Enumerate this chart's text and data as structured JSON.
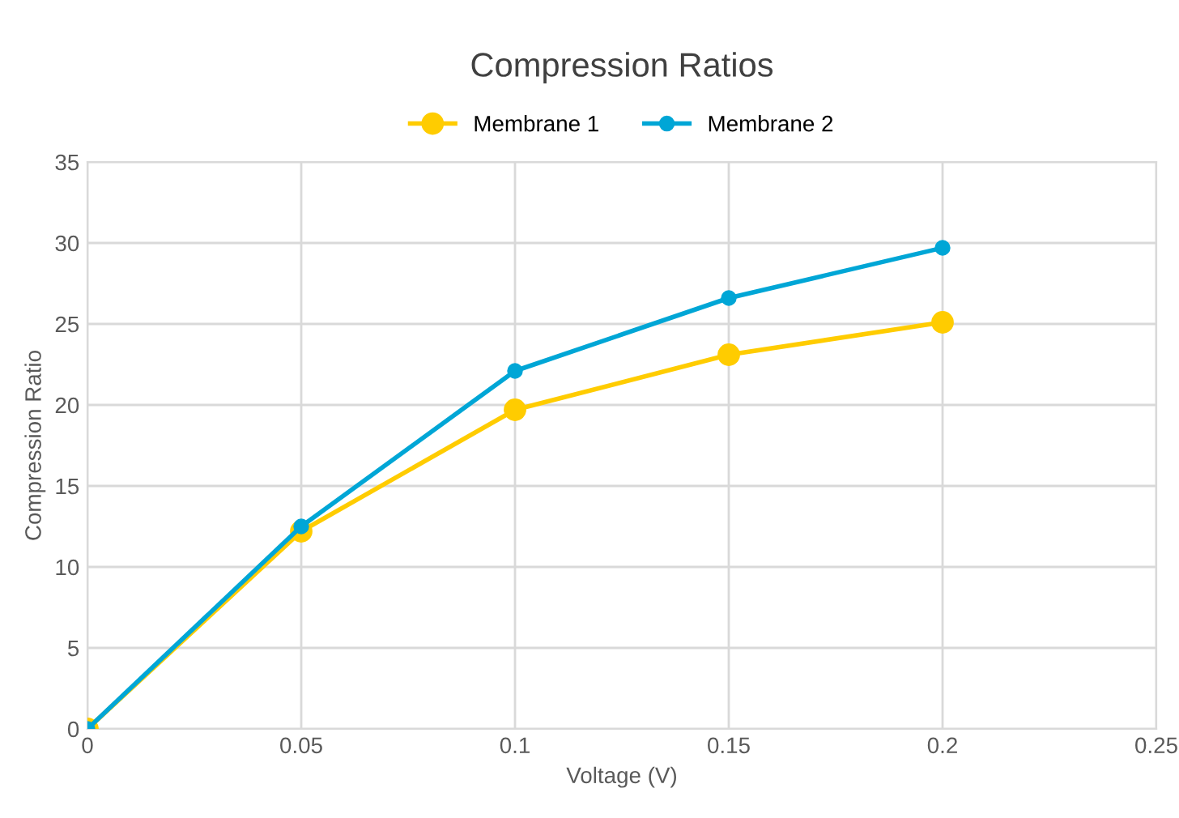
{
  "chart_data": {
    "type": "line",
    "title": "Compression Ratios",
    "xlabel": "Voltage (V)",
    "ylabel": "Compression Ratio",
    "x": [
      0,
      0.05,
      0.1,
      0.15,
      0.2
    ],
    "series": [
      {
        "name": "Membrane 1",
        "color": "#ffcc00",
        "values": [
          0,
          12.2,
          19.7,
          23.1,
          25.1
        ]
      },
      {
        "name": "Membrane 2",
        "color": "#00a6d6",
        "values": [
          0,
          12.5,
          22.1,
          26.6,
          29.7
        ]
      }
    ],
    "xlim": [
      0,
      0.25
    ],
    "xticks": [
      0,
      0.05,
      0.1,
      0.15,
      0.2,
      0.25
    ],
    "ylim": [
      0,
      35
    ],
    "yticks": [
      0,
      5,
      10,
      15,
      20,
      25,
      30,
      35
    ],
    "grid": true,
    "legend": "top",
    "marker": "circle",
    "line_style": "solid"
  }
}
